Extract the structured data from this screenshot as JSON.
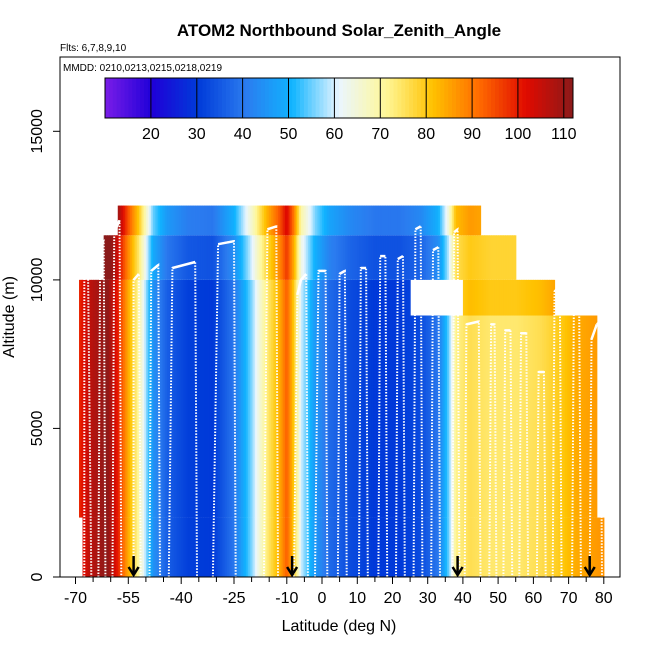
{
  "chart_data": {
    "type": "heatmap",
    "title": "ATOM2 Northbound Solar_Zenith_Angle",
    "flights_label": "Flts: 6,7,8,9,10",
    "dates_label": "MMDD: 0210,0213,0215,0218,0219",
    "xlabel": "Latitude (deg N)",
    "ylabel": "Altitude (m)",
    "xlim": [
      -70,
      85
    ],
    "ylim": [
      0,
      17500
    ],
    "xticks": [
      -70,
      -55,
      -40,
      -25,
      -10,
      0,
      10,
      20,
      30,
      40,
      50,
      60,
      70,
      80
    ],
    "xtick_labels": [
      "-70",
      "-55",
      "-40",
      "-25",
      "-10",
      "0",
      "10",
      "20",
      "30",
      "40",
      "50",
      "60",
      "70",
      "80"
    ],
    "xminor_ticks": [
      -65,
      -60,
      -50,
      -45,
      -35,
      -30,
      -20,
      -15,
      -5,
      5,
      15,
      25,
      35,
      45,
      55,
      65,
      75
    ],
    "yticks": [
      0,
      5000,
      10000,
      15000
    ],
    "ytick_labels": [
      "0",
      "5000",
      "10000",
      "15000"
    ],
    "colorbar": {
      "min": 10,
      "max": 112,
      "ticks": [
        20,
        30,
        40,
        50,
        60,
        70,
        80,
        90,
        100,
        110
      ],
      "tick_labels": [
        "20",
        "30",
        "40",
        "50",
        "60",
        "70",
        "80",
        "90",
        "100",
        "110"
      ],
      "colors": [
        "#7a1de8",
        "#1f00d8",
        "#003bd9",
        "#2b7bef",
        "#10b4ff",
        "#eaf6ff",
        "#fff799",
        "#ffc200",
        "#ff6a00",
        "#e00a00",
        "#8b1a1a"
      ]
    },
    "sza_profile": [
      [
        -70,
        96
      ],
      [
        -66,
        106
      ],
      [
        -61,
        112
      ],
      [
        -58,
        100
      ],
      [
        -55,
        84
      ],
      [
        -52,
        70
      ],
      [
        -48,
        45
      ],
      [
        -44,
        36
      ],
      [
        -38,
        31
      ],
      [
        -31,
        30
      ],
      [
        -25,
        40
      ],
      [
        -20,
        56
      ],
      [
        -16,
        72
      ],
      [
        -12,
        84
      ],
      [
        -10,
        93
      ],
      [
        -8,
        80
      ],
      [
        -6,
        60
      ],
      [
        -2,
        46
      ],
      [
        2,
        38
      ],
      [
        8,
        33
      ],
      [
        15,
        30
      ],
      [
        22,
        30
      ],
      [
        28,
        33
      ],
      [
        33,
        40
      ],
      [
        36,
        55
      ],
      [
        38,
        72
      ],
      [
        42,
        76
      ],
      [
        48,
        74
      ],
      [
        55,
        74
      ],
      [
        62,
        76
      ],
      [
        68,
        80
      ],
      [
        72,
        84
      ],
      [
        78,
        86
      ],
      [
        82,
        88
      ]
    ],
    "background_blocks": [
      {
        "lat": [
          -68,
          80
        ],
        "alt": [
          0,
          2000
        ],
        "sza_offset": 0
      },
      {
        "lat": [
          -69,
          25
        ],
        "alt": [
          2000,
          10000
        ],
        "sza_offset": 0
      },
      {
        "lat": [
          25,
          78
        ],
        "alt": [
          2000,
          8800
        ],
        "sza_offset": 0
      },
      {
        "lat": [
          -62,
          55
        ],
        "alt": [
          10000,
          11500
        ],
        "sza_offset": 4
      },
      {
        "lat": [
          -58,
          45
        ],
        "alt": [
          11500,
          12500
        ],
        "sza_offset": 10
      },
      {
        "lat": [
          40,
          66
        ],
        "alt": [
          8800,
          10000
        ],
        "sza_offset": 6
      }
    ],
    "flight_tracks": [
      [
        [
          -67.5,
          0
        ],
        [
          -67.5,
          10800
        ],
        [
          -66.5,
          11000
        ],
        [
          -65.5,
          0
        ]
      ],
      [
        [
          -63.5,
          0
        ],
        [
          -63,
          11200
        ],
        [
          -62,
          11300
        ],
        [
          -61.5,
          0
        ]
      ],
      [
        [
          -59.5,
          0
        ],
        [
          -59,
          11600
        ],
        [
          -57.5,
          12000
        ],
        [
          -57,
          0
        ]
      ],
      [
        [
          -53.5,
          0
        ],
        [
          -53.5,
          10000
        ],
        [
          -52,
          10200
        ],
        [
          -51.5,
          0
        ]
      ],
      [
        [
          -49,
          0
        ],
        [
          -48.5,
          10300
        ],
        [
          -46.5,
          10500
        ],
        [
          -46,
          0
        ]
      ],
      [
        [
          -43.5,
          0
        ],
        [
          -42.5,
          10400
        ],
        [
          -36,
          10600
        ],
        [
          -35.5,
          0
        ]
      ],
      [
        [
          -31,
          0
        ],
        [
          -29.5,
          11200
        ],
        [
          -25,
          11300
        ],
        [
          -24.5,
          0
        ]
      ],
      [
        [
          -16.5,
          0
        ],
        [
          -15.5,
          11700
        ],
        [
          -13,
          11800
        ],
        [
          -12.5,
          0
        ]
      ],
      [
        [
          -8,
          0
        ],
        [
          -7,
          9500
        ],
        [
          -6,
          10000
        ],
        [
          -4.5,
          10200
        ],
        [
          -4,
          0
        ]
      ],
      [
        [
          -2,
          0
        ],
        [
          -1,
          10300
        ],
        [
          1,
          10300
        ],
        [
          1.5,
          0
        ]
      ],
      [
        [
          4.5,
          0
        ],
        [
          5,
          10200
        ],
        [
          6.5,
          10300
        ],
        [
          7,
          0
        ]
      ],
      [
        [
          10.5,
          0
        ],
        [
          11,
          10400
        ],
        [
          12.5,
          10400
        ],
        [
          13,
          0
        ]
      ],
      [
        [
          16,
          0
        ],
        [
          16.5,
          10800
        ],
        [
          18,
          10800
        ],
        [
          18.5,
          0
        ]
      ],
      [
        [
          21,
          0
        ],
        [
          21.5,
          10700
        ],
        [
          23,
          10800
        ],
        [
          23.5,
          0
        ]
      ],
      [
        [
          26,
          0
        ],
        [
          26.5,
          11700
        ],
        [
          28,
          11800
        ],
        [
          28.5,
          0
        ]
      ],
      [
        [
          31,
          0
        ],
        [
          31.5,
          11000
        ],
        [
          33,
          11100
        ],
        [
          33.5,
          0
        ]
      ],
      [
        [
          37,
          0
        ],
        [
          37.5,
          11600
        ],
        [
          38.5,
          11700
        ],
        [
          39,
          0
        ]
      ],
      [
        [
          40.5,
          0
        ],
        [
          41,
          8500
        ],
        [
          44.5,
          8600
        ],
        [
          45,
          0
        ]
      ],
      [
        [
          47.5,
          0
        ],
        [
          48,
          8500
        ],
        [
          49,
          8500
        ],
        [
          49.5,
          0
        ]
      ],
      [
        [
          51.5,
          0
        ],
        [
          52,
          8300
        ],
        [
          53.5,
          8300
        ],
        [
          54,
          0
        ]
      ],
      [
        [
          56,
          0
        ],
        [
          56.5,
          8200
        ],
        [
          58,
          8200
        ],
        [
          58.5,
          0
        ]
      ],
      [
        [
          61,
          0
        ],
        [
          61.5,
          6900
        ],
        [
          63,
          6900
        ],
        [
          63.5,
          0
        ]
      ],
      [
        [
          65.5,
          0
        ],
        [
          66,
          9600
        ],
        [
          67.5,
          9800
        ],
        [
          68,
          0
        ]
      ],
      [
        [
          71,
          0
        ],
        [
          71.5,
          9300
        ],
        [
          73,
          9500
        ],
        [
          73.5,
          0
        ]
      ],
      [
        [
          76,
          0
        ],
        [
          76.5,
          8000
        ],
        [
          78,
          8500
        ],
        [
          79,
          8600
        ],
        [
          79.5,
          0
        ]
      ]
    ],
    "arrows_lat": [
      -53.5,
      -8.5,
      38.5,
      76
    ]
  }
}
